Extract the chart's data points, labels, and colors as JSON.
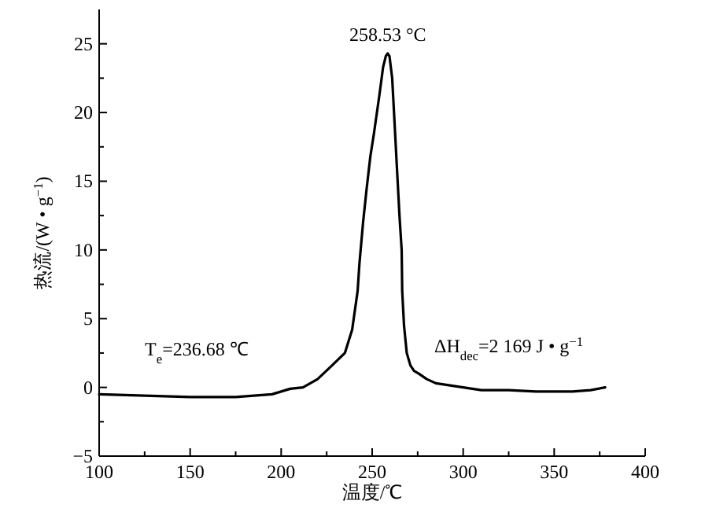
{
  "chart_data": {
    "type": "line",
    "xlabel": "温度/℃",
    "ylabel": "热流/(W • g$^{−1}$)",
    "xlim": [
      100,
      400
    ],
    "ylim": [
      -5,
      27.5
    ],
    "xticks": [
      100,
      {
        "value": 125,
        "label": null
      },
      150,
      {
        "value": 175,
        "label": null
      },
      200,
      {
        "value": 225,
        "label": null
      },
      250,
      {
        "value": 275,
        "label": null
      },
      300,
      {
        "value": 325,
        "label": null
      },
      350,
      {
        "value": 375,
        "label": null
      },
      400
    ],
    "yticks": [
      {
        "value": -5,
        "label": "−5"
      },
      {
        "value": -2.5,
        "label": null
      },
      0,
      {
        "value": 2.5,
        "label": null
      },
      5,
      {
        "value": 7.5,
        "label": null
      },
      10,
      {
        "value": 12.5,
        "label": null
      },
      15,
      {
        "value": 17.5,
        "label": null
      },
      20,
      {
        "value": 22.5,
        "label": null
      },
      25
    ],
    "grid": false,
    "series": [
      {
        "color": "#000000",
        "x": [
          100,
          125,
          150,
          175,
          185,
          195,
          200,
          205,
          212,
          220,
          228,
          235,
          239,
          242,
          243,
          245,
          247,
          249,
          251,
          254,
          256,
          257.5,
          258.5,
          259.5,
          261,
          262,
          264,
          265,
          266.2,
          266.5,
          267.5,
          269,
          271,
          273,
          275.6,
          280,
          285,
          290,
          300,
          310,
          325,
          340,
          360,
          370,
          378
        ],
        "values": [
          -0.5,
          -0.6,
          -0.7,
          -0.7,
          -0.6,
          -0.5,
          -0.3,
          -0.1,
          0,
          0.6,
          1.6,
          2.5,
          4.2,
          7,
          9,
          12,
          14.5,
          16.8,
          18.5,
          21.3,
          23.3,
          24.1,
          24.3,
          24.1,
          22.5,
          20,
          15,
          12.5,
          10,
          7,
          4.5,
          2.5,
          1.6,
          1.2,
          1,
          0.6,
          0.3,
          0.2,
          0,
          -0.2,
          -0.2,
          -0.3,
          -0.3,
          -0.2,
          0
        ]
      }
    ],
    "annotations": [
      {
        "text": "258.53 °C",
        "x": 258.53,
        "y": 24.3
      },
      "T$_{e}$=236.68 ℃",
      "ΔH$_{dec}$=2 169 J • g$^{−1}$"
    ]
  }
}
